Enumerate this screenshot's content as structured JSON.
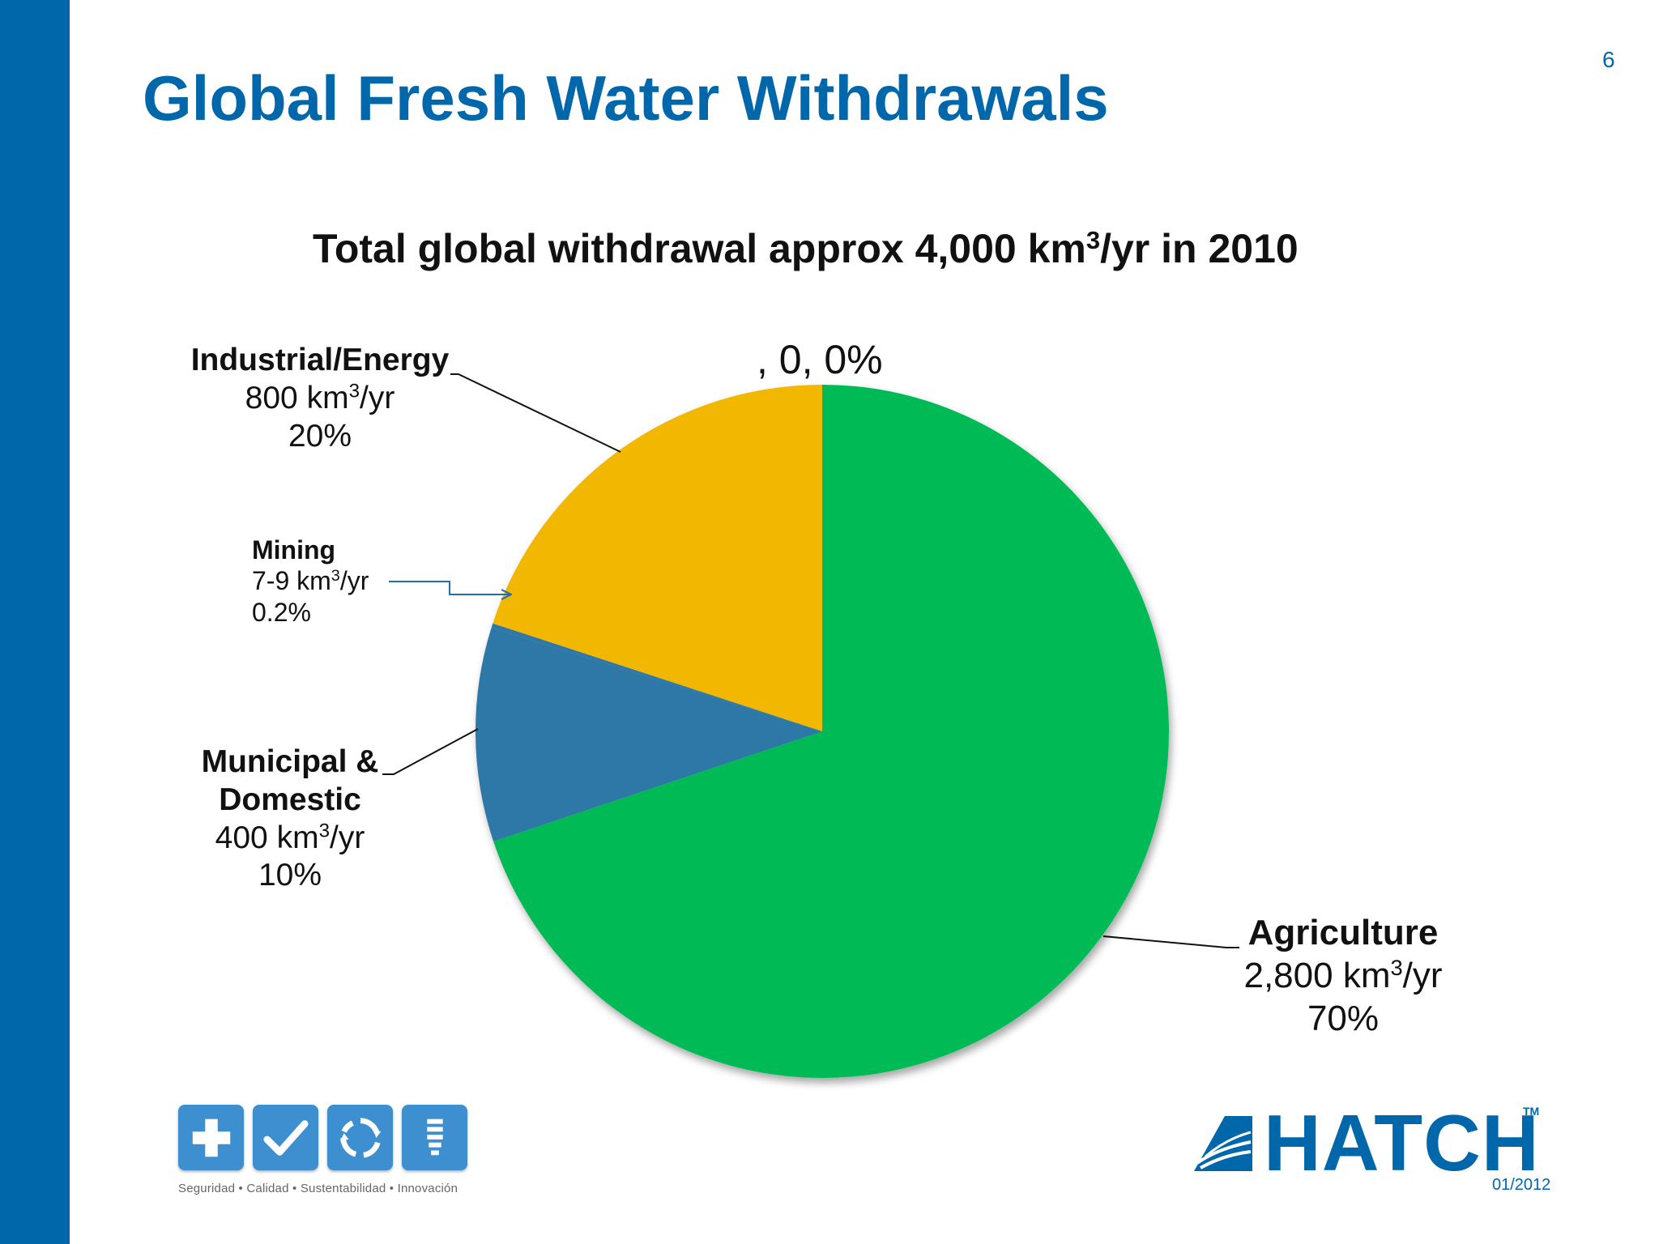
{
  "slide": {
    "title": "Global Fresh Water Withdrawals",
    "page_number": "6",
    "date": "01/2012",
    "brand": "HATCH",
    "trademark": "TM",
    "tagline": "Seguridad • Calidad • Sustentabilidad • Innovación",
    "footer_icons": [
      "plus-icon",
      "check-icon",
      "recycle-icon",
      "lightbulb-icon"
    ],
    "colors": {
      "brand_blue": "#0067ab",
      "icon_blue": "#3e8fd0"
    }
  },
  "chart_data": {
    "type": "pie",
    "title_parts": {
      "pre": "Total global withdrawal approx 4,000 km",
      "sup": "3",
      "post": "/yr in 2010"
    },
    "unit_base": "km",
    "unit_sup": "3",
    "unit_post": "/yr",
    "zero_label": ", 0, 0%",
    "slices": [
      {
        "name": "Agriculture",
        "value": 2800,
        "value_label": "2,800",
        "percent_label": "70%",
        "color": "#00bb55"
      },
      {
        "name": "Municipal & Domestic",
        "value": 400,
        "value_label": "400",
        "percent_label": "10%",
        "color": "#2e78a8"
      },
      {
        "name": "Mining",
        "value": 8,
        "value_label": "7-9",
        "percent_label": "0.2%",
        "color": "#2e78a8"
      },
      {
        "name": "Industrial/Energy",
        "value": 800,
        "value_label": "800",
        "percent_label": "20%",
        "color": "#f2b705"
      }
    ]
  }
}
